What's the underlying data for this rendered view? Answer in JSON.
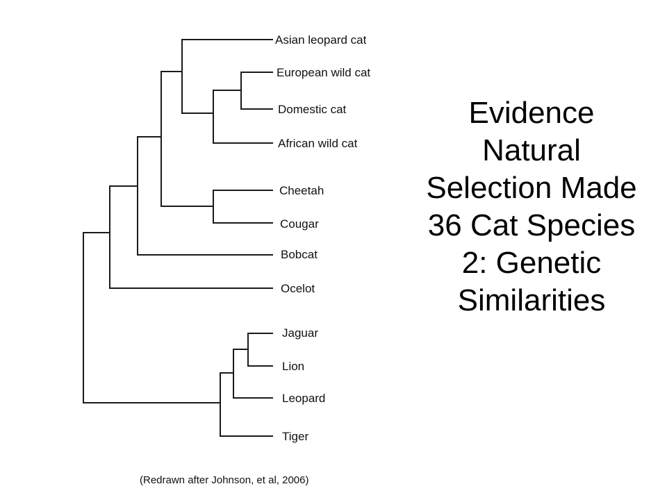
{
  "title_lines": [
    "Evidence",
    "Natural",
    "Selection Made",
    "36 Cat Species",
    "2:  Genetic",
    "Similarities"
  ],
  "species": [
    "Asian leopard cat",
    "European wild cat",
    "Domestic cat",
    "African wild cat",
    "Cheetah",
    "Cougar",
    "Bobcat",
    "Ocelot",
    "Jaguar",
    "Lion",
    "Leopard",
    "Tiger"
  ],
  "citation": "(Redrawn after Johnson, et al, 2006)"
}
